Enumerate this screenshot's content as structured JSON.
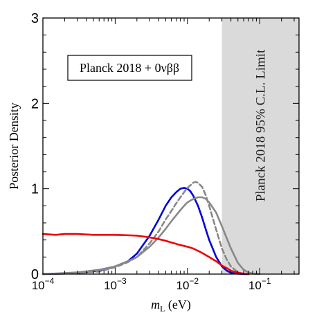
{
  "chart_data": {
    "type": "line",
    "xlabel_main": "m",
    "xlabel_sub": "L",
    "xlabel_unit": " (eV)",
    "ylabel": "Posterior Density",
    "xscale": "log",
    "xlim": [
      0.0001,
      0.35
    ],
    "ylim": [
      0,
      3
    ],
    "grid": false,
    "x_ticks": [
      {
        "value": 0.0001,
        "base": "10",
        "exp": "−4"
      },
      {
        "value": 0.001,
        "base": "10",
        "exp": "−3"
      },
      {
        "value": 0.01,
        "base": "10",
        "exp": "−2"
      },
      {
        "value": 0.1,
        "base": "10",
        "exp": "−1"
      }
    ],
    "y_ticks": [
      {
        "value": 0,
        "label": "0"
      },
      {
        "value": 1,
        "label": "1"
      },
      {
        "value": 2,
        "label": "2"
      },
      {
        "value": 3,
        "label": "3"
      }
    ],
    "annotation": "Planck 2018 + 0νββ",
    "limit_region": {
      "label": "Planck 2018 95% C.L. Limit",
      "x_start": 0.03,
      "x_end": 0.35,
      "color": "#dadada"
    },
    "series": [
      {
        "color": "#0000dd",
        "style": "solid",
        "x": [
          0.0001,
          0.0003,
          0.0006,
          0.001,
          0.0015,
          0.002,
          0.003,
          0.004,
          0.005,
          0.006,
          0.007,
          0.008,
          0.009,
          0.01,
          0.011,
          0.012,
          0.014,
          0.016,
          0.018,
          0.02,
          0.025,
          0.03,
          0.035,
          0.04,
          0.05,
          0.06,
          0.07
        ],
        "y": [
          0.0,
          0.01,
          0.04,
          0.09,
          0.15,
          0.24,
          0.45,
          0.64,
          0.8,
          0.9,
          0.96,
          1.0,
          1.01,
          1.0,
          0.97,
          0.92,
          0.8,
          0.66,
          0.52,
          0.4,
          0.2,
          0.09,
          0.04,
          0.015,
          0.005,
          0.0,
          0.0
        ]
      },
      {
        "color": "#888888",
        "style": "dashed",
        "x": [
          0.0001,
          0.0003,
          0.0006,
          0.001,
          0.0015,
          0.002,
          0.003,
          0.004,
          0.005,
          0.006,
          0.007,
          0.008,
          0.009,
          0.01,
          0.011,
          0.012,
          0.013,
          0.014,
          0.016,
          0.018,
          0.02,
          0.025,
          0.03,
          0.035,
          0.04,
          0.05,
          0.06,
          0.07
        ],
        "y": [
          0.0,
          0.01,
          0.03,
          0.08,
          0.14,
          0.2,
          0.36,
          0.5,
          0.64,
          0.74,
          0.83,
          0.9,
          0.96,
          1.01,
          1.04,
          1.07,
          1.08,
          1.07,
          1.02,
          0.92,
          0.8,
          0.52,
          0.3,
          0.17,
          0.09,
          0.02,
          0.005,
          0.0
        ]
      },
      {
        "color": "#888888",
        "style": "solid",
        "x": [
          0.0001,
          0.0003,
          0.0006,
          0.001,
          0.0015,
          0.002,
          0.003,
          0.004,
          0.005,
          0.006,
          0.007,
          0.008,
          0.009,
          0.01,
          0.012,
          0.014,
          0.016,
          0.018,
          0.02,
          0.025,
          0.03,
          0.035,
          0.04,
          0.05,
          0.06,
          0.07,
          0.08,
          0.1
        ],
        "y": [
          0.0,
          0.02,
          0.05,
          0.09,
          0.15,
          0.2,
          0.32,
          0.43,
          0.53,
          0.62,
          0.69,
          0.75,
          0.8,
          0.84,
          0.88,
          0.9,
          0.9,
          0.88,
          0.84,
          0.72,
          0.56,
          0.42,
          0.3,
          0.13,
          0.05,
          0.02,
          0.005,
          0.0
        ]
      },
      {
        "color": "#ee0000",
        "style": "solid",
        "x": [
          0.0001,
          0.00015,
          0.0002,
          0.0003,
          0.0005,
          0.0008,
          0.001,
          0.0015,
          0.002,
          0.003,
          0.004,
          0.005,
          0.006,
          0.008,
          0.01,
          0.012,
          0.015,
          0.02,
          0.025,
          0.03,
          0.035,
          0.04,
          0.05,
          0.06,
          0.07
        ],
        "y": [
          0.47,
          0.46,
          0.47,
          0.47,
          0.46,
          0.46,
          0.46,
          0.455,
          0.45,
          0.43,
          0.41,
          0.39,
          0.37,
          0.34,
          0.32,
          0.3,
          0.26,
          0.2,
          0.15,
          0.1,
          0.07,
          0.04,
          0.015,
          0.005,
          0.0
        ]
      }
    ]
  }
}
